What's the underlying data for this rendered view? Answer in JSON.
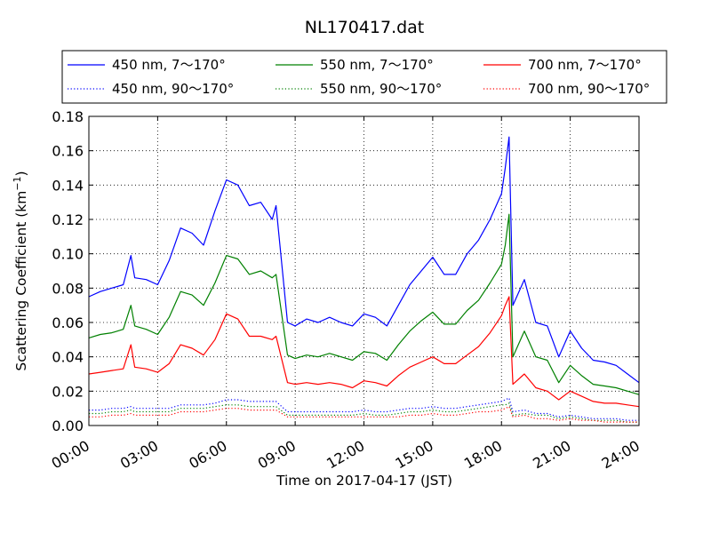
{
  "chart_data": {
    "type": "line",
    "title": "NL170417.dat",
    "xlabel": "Time on 2017-04-17 (JST)",
    "ylabel": "Scattering Coefficient (km",
    "ylabel_superscript": "−1",
    "ylabel_close": ")",
    "xlim": [
      "00:00",
      "24:00"
    ],
    "ylim": [
      0.0,
      0.18
    ],
    "grid": true,
    "legend_position": "top, above plot",
    "x_tick_labels": [
      "00:00",
      "03:00",
      "06:00",
      "09:00",
      "12:00",
      "15:00",
      "18:00",
      "21:00",
      "24:00"
    ],
    "y_tick_labels": [
      "0.00",
      "0.02",
      "0.04",
      "0.06",
      "0.08",
      "0.10",
      "0.12",
      "0.14",
      "0.16",
      "0.18"
    ],
    "x": [
      "00:00",
      "00:30",
      "01:00",
      "01:30",
      "01:50",
      "02:00",
      "02:30",
      "03:00",
      "03:30",
      "04:00",
      "04:30",
      "05:00",
      "05:30",
      "06:00",
      "06:30",
      "07:00",
      "07:30",
      "08:00",
      "08:10",
      "08:40",
      "09:00",
      "09:30",
      "10:00",
      "10:30",
      "11:00",
      "11:30",
      "12:00",
      "12:30",
      "13:00",
      "13:30",
      "14:00",
      "14:30",
      "15:00",
      "15:30",
      "16:00",
      "16:30",
      "17:00",
      "17:30",
      "18:00",
      "18:10",
      "18:20",
      "18:30",
      "19:00",
      "19:30",
      "20:00",
      "20:30",
      "21:00",
      "21:30",
      "22:00",
      "22:30",
      "23:00",
      "23:30",
      "24:00"
    ],
    "series": [
      {
        "name": "450 nm, 7～170°",
        "color": "#0000ff",
        "style": "solid",
        "values": [
          0.075,
          0.078,
          0.08,
          0.082,
          0.099,
          0.086,
          0.085,
          0.082,
          0.096,
          0.115,
          0.112,
          0.105,
          0.125,
          0.143,
          0.14,
          0.128,
          0.13,
          0.12,
          0.128,
          0.06,
          0.058,
          0.062,
          0.06,
          0.063,
          0.06,
          0.058,
          0.065,
          0.063,
          0.058,
          0.07,
          0.082,
          0.09,
          0.098,
          0.088,
          0.088,
          0.1,
          0.108,
          0.12,
          0.135,
          0.15,
          0.168,
          0.07,
          0.085,
          0.06,
          0.058,
          0.04,
          0.055,
          0.045,
          0.038,
          0.037,
          0.035,
          0.03,
          0.025
        ]
      },
      {
        "name": "450 nm, 90～170°",
        "color": "#0000ff",
        "style": "dotted",
        "values": [
          0.009,
          0.009,
          0.01,
          0.01,
          0.011,
          0.01,
          0.01,
          0.01,
          0.01,
          0.012,
          0.012,
          0.012,
          0.013,
          0.015,
          0.015,
          0.014,
          0.014,
          0.014,
          0.014,
          0.008,
          0.008,
          0.008,
          0.008,
          0.008,
          0.008,
          0.008,
          0.009,
          0.008,
          0.008,
          0.009,
          0.01,
          0.01,
          0.011,
          0.01,
          0.01,
          0.011,
          0.012,
          0.013,
          0.014,
          0.015,
          0.016,
          0.008,
          0.009,
          0.007,
          0.007,
          0.005,
          0.006,
          0.005,
          0.004,
          0.004,
          0.004,
          0.003,
          0.003
        ]
      },
      {
        "name": "550 nm, 7～170°",
        "color": "#008000",
        "style": "solid",
        "values": [
          0.051,
          0.053,
          0.054,
          0.056,
          0.07,
          0.058,
          0.056,
          0.053,
          0.063,
          0.078,
          0.076,
          0.07,
          0.083,
          0.099,
          0.097,
          0.088,
          0.09,
          0.086,
          0.088,
          0.041,
          0.039,
          0.041,
          0.04,
          0.042,
          0.04,
          0.038,
          0.043,
          0.042,
          0.038,
          0.047,
          0.055,
          0.061,
          0.066,
          0.059,
          0.059,
          0.067,
          0.073,
          0.083,
          0.094,
          0.105,
          0.123,
          0.04,
          0.055,
          0.04,
          0.038,
          0.025,
          0.035,
          0.029,
          0.024,
          0.023,
          0.022,
          0.02,
          0.018
        ]
      },
      {
        "name": "550 nm, 90～170°",
        "color": "#008000",
        "style": "dotted",
        "values": [
          0.007,
          0.007,
          0.008,
          0.008,
          0.009,
          0.008,
          0.008,
          0.008,
          0.008,
          0.01,
          0.01,
          0.01,
          0.011,
          0.012,
          0.012,
          0.011,
          0.011,
          0.011,
          0.011,
          0.006,
          0.006,
          0.006,
          0.006,
          0.006,
          0.006,
          0.006,
          0.007,
          0.006,
          0.006,
          0.007,
          0.008,
          0.008,
          0.009,
          0.008,
          0.008,
          0.009,
          0.01,
          0.011,
          0.012,
          0.012,
          0.013,
          0.006,
          0.007,
          0.006,
          0.006,
          0.004,
          0.005,
          0.004,
          0.003,
          0.003,
          0.003,
          0.002,
          0.002
        ]
      },
      {
        "name": "700 nm, 7～170°",
        "color": "#ff0000",
        "style": "solid",
        "values": [
          0.03,
          0.031,
          0.032,
          0.033,
          0.047,
          0.034,
          0.033,
          0.031,
          0.036,
          0.047,
          0.045,
          0.041,
          0.05,
          0.065,
          0.062,
          0.052,
          0.052,
          0.05,
          0.052,
          0.025,
          0.024,
          0.025,
          0.024,
          0.025,
          0.024,
          0.022,
          0.026,
          0.025,
          0.023,
          0.029,
          0.034,
          0.037,
          0.04,
          0.036,
          0.036,
          0.041,
          0.046,
          0.054,
          0.064,
          0.07,
          0.075,
          0.024,
          0.03,
          0.022,
          0.02,
          0.015,
          0.02,
          0.017,
          0.014,
          0.013,
          0.013,
          0.012,
          0.011
        ]
      },
      {
        "name": "700 nm, 90～170°",
        "color": "#ff0000",
        "style": "dotted",
        "values": [
          0.005,
          0.005,
          0.006,
          0.006,
          0.007,
          0.006,
          0.006,
          0.006,
          0.006,
          0.008,
          0.008,
          0.008,
          0.009,
          0.01,
          0.01,
          0.009,
          0.009,
          0.009,
          0.009,
          0.005,
          0.005,
          0.005,
          0.005,
          0.005,
          0.005,
          0.005,
          0.005,
          0.005,
          0.005,
          0.005,
          0.006,
          0.006,
          0.007,
          0.006,
          0.006,
          0.007,
          0.008,
          0.008,
          0.009,
          0.01,
          0.011,
          0.005,
          0.006,
          0.004,
          0.004,
          0.003,
          0.004,
          0.003,
          0.003,
          0.002,
          0.002,
          0.002,
          0.002
        ]
      }
    ]
  }
}
